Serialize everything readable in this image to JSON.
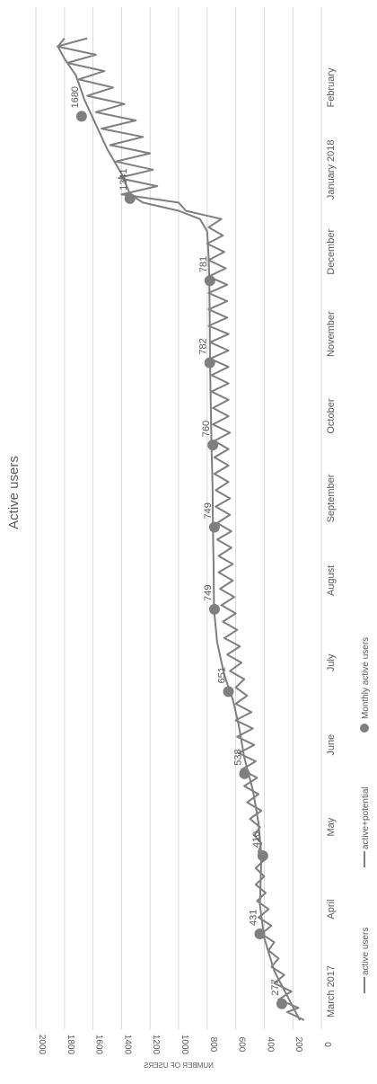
{
  "chart_data": {
    "type": "line",
    "title": "Active users",
    "ylabel": "NUMBER OF USERS",
    "ylim": [
      0,
      2000
    ],
    "y_ticks": [
      0,
      200,
      400,
      600,
      800,
      1000,
      1200,
      1400,
      1600,
      1800,
      2000
    ],
    "grid": true,
    "legend_position": "bottom",
    "x_tick_labels": [
      {
        "label": "March 2017",
        "month": 0
      },
      {
        "label": "April",
        "month": 1
      },
      {
        "label": "May",
        "month": 2
      },
      {
        "label": "June",
        "month": 3
      },
      {
        "label": "July",
        "month": 4
      },
      {
        "label": "August",
        "month": 5
      },
      {
        "label": "September",
        "month": 6
      },
      {
        "label": "October",
        "month": 7
      },
      {
        "label": "November",
        "month": 8
      },
      {
        "label": "December",
        "month": 9
      },
      {
        "label": "January 2018",
        "month": 10
      },
      {
        "label": "February",
        "month": 11
      }
    ],
    "colors": {
      "line": "#7f7f7f",
      "marker": "#7f7f7f",
      "grid": "#d9d9d9",
      "text": "#595959"
    },
    "series": [
      {
        "name": "active users",
        "kind": "line",
        "points": [
          [
            0,
            150
          ],
          [
            0.3,
            240
          ],
          [
            0.6,
            330
          ],
          [
            1.0,
            400
          ],
          [
            1.4,
            430
          ],
          [
            2.0,
            420
          ],
          [
            2.4,
            440
          ],
          [
            2.8,
            480
          ],
          [
            3.2,
            540
          ],
          [
            3.6,
            580
          ],
          [
            3.9,
            620
          ],
          [
            4.2,
            680
          ],
          [
            4.6,
            730
          ],
          [
            5.0,
            752
          ],
          [
            5.5,
            755
          ],
          [
            6.0,
            760
          ],
          [
            6.5,
            762
          ],
          [
            7.0,
            770
          ],
          [
            7.5,
            775
          ],
          [
            8.0,
            780
          ],
          [
            8.5,
            782
          ],
          [
            9.0,
            785
          ],
          [
            9.3,
            790
          ],
          [
            9.6,
            800
          ],
          [
            9.75,
            850
          ],
          [
            9.85,
            1000
          ],
          [
            9.95,
            1250
          ],
          [
            10.05,
            1340
          ],
          [
            10.3,
            1400
          ],
          [
            10.6,
            1500
          ],
          [
            10.9,
            1580
          ],
          [
            11.2,
            1660
          ],
          [
            11.5,
            1720
          ],
          [
            11.7,
            1800
          ],
          [
            11.85,
            1845
          ],
          [
            11.95,
            1800
          ]
        ]
      },
      {
        "name": "active+potential",
        "kind": "line",
        "points": [
          [
            0,
            120
          ],
          [
            0.1,
            240
          ],
          [
            0.15,
            160
          ],
          [
            0.25,
            300
          ],
          [
            0.35,
            210
          ],
          [
            0.45,
            330
          ],
          [
            0.55,
            260
          ],
          [
            0.65,
            350
          ],
          [
            0.75,
            300
          ],
          [
            0.85,
            370
          ],
          [
            0.95,
            330
          ],
          [
            1.05,
            420
          ],
          [
            1.15,
            350
          ],
          [
            1.25,
            440
          ],
          [
            1.35,
            370
          ],
          [
            1.45,
            450
          ],
          [
            1.55,
            390
          ],
          [
            1.65,
            460
          ],
          [
            1.75,
            400
          ],
          [
            1.85,
            460
          ],
          [
            1.95,
            400
          ],
          [
            2.05,
            440
          ],
          [
            2.15,
            420
          ],
          [
            2.25,
            470
          ],
          [
            2.35,
            430
          ],
          [
            2.45,
            500
          ],
          [
            2.55,
            420
          ],
          [
            2.65,
            520
          ],
          [
            2.75,
            440
          ],
          [
            2.85,
            540
          ],
          [
            2.95,
            450
          ],
          [
            3.05,
            560
          ],
          [
            3.15,
            460
          ],
          [
            3.25,
            580
          ],
          [
            3.35,
            470
          ],
          [
            3.45,
            590
          ],
          [
            3.55,
            480
          ],
          [
            3.65,
            600
          ],
          [
            3.75,
            490
          ],
          [
            3.85,
            600
          ],
          [
            3.95,
            520
          ],
          [
            4.05,
            600
          ],
          [
            4.15,
            540
          ],
          [
            4.25,
            640
          ],
          [
            4.35,
            560
          ],
          [
            4.45,
            660
          ],
          [
            4.55,
            570
          ],
          [
            4.65,
            680
          ],
          [
            4.75,
            590
          ],
          [
            4.85,
            690
          ],
          [
            4.95,
            600
          ],
          [
            5.05,
            700
          ],
          [
            5.15,
            610
          ],
          [
            5.25,
            710
          ],
          [
            5.35,
            620
          ],
          [
            5.45,
            720
          ],
          [
            5.55,
            620
          ],
          [
            5.65,
            720
          ],
          [
            5.75,
            630
          ],
          [
            5.85,
            730
          ],
          [
            5.95,
            630
          ],
          [
            6.05,
            730
          ],
          [
            6.15,
            640
          ],
          [
            6.25,
            740
          ],
          [
            6.35,
            640
          ],
          [
            6.45,
            740
          ],
          [
            6.55,
            650
          ],
          [
            6.65,
            750
          ],
          [
            6.75,
            650
          ],
          [
            6.85,
            750
          ],
          [
            6.95,
            650
          ],
          [
            7.05,
            750
          ],
          [
            7.15,
            640
          ],
          [
            7.25,
            760
          ],
          [
            7.35,
            650
          ],
          [
            7.45,
            760
          ],
          [
            7.55,
            650
          ],
          [
            7.65,
            770
          ],
          [
            7.75,
            650
          ],
          [
            7.85,
            770
          ],
          [
            7.95,
            650
          ],
          [
            8.05,
            780
          ],
          [
            8.15,
            650
          ],
          [
            8.25,
            780
          ],
          [
            8.35,
            650
          ],
          [
            8.45,
            790
          ],
          [
            8.55,
            660
          ],
          [
            8.65,
            790
          ],
          [
            8.75,
            660
          ],
          [
            8.85,
            790
          ],
          [
            8.95,
            660
          ],
          [
            9.05,
            790
          ],
          [
            9.15,
            670
          ],
          [
            9.25,
            790
          ],
          [
            9.35,
            680
          ],
          [
            9.45,
            800
          ],
          [
            9.55,
            690
          ],
          [
            9.65,
            790
          ],
          [
            9.75,
            700
          ],
          [
            9.85,
            950
          ],
          [
            9.95,
            1000
          ],
          [
            10.05,
            1400
          ],
          [
            10.15,
            1150
          ],
          [
            10.25,
            1420
          ],
          [
            10.35,
            1180
          ],
          [
            10.45,
            1440
          ],
          [
            10.55,
            1200
          ],
          [
            10.65,
            1480
          ],
          [
            10.75,
            1250
          ],
          [
            10.85,
            1540
          ],
          [
            10.95,
            1300
          ],
          [
            11.05,
            1580
          ],
          [
            11.15,
            1380
          ],
          [
            11.25,
            1640
          ],
          [
            11.35,
            1460
          ],
          [
            11.45,
            1700
          ],
          [
            11.55,
            1520
          ],
          [
            11.65,
            1780
          ],
          [
            11.75,
            1580
          ],
          [
            11.85,
            1850
          ],
          [
            11.95,
            1640
          ]
        ]
      },
      {
        "name": "Monthly active users",
        "kind": "markers",
        "points": [
          {
            "x": 0.2,
            "y": 277,
            "label": "277"
          },
          {
            "x": 1.05,
            "y": 431,
            "label": "431"
          },
          {
            "x": 2.0,
            "y": 410,
            "label": "410"
          },
          {
            "x": 3.0,
            "y": 538,
            "label": "538"
          },
          {
            "x": 4.0,
            "y": 651,
            "label": "651"
          },
          {
            "x": 5.0,
            "y": 749,
            "label": "749"
          },
          {
            "x": 6.0,
            "y": 749,
            "label": "749"
          },
          {
            "x": 7.0,
            "y": 760,
            "label": "760"
          },
          {
            "x": 8.0,
            "y": 782,
            "label": "782"
          },
          {
            "x": 9.0,
            "y": 781,
            "label": "781"
          },
          {
            "x": 10.0,
            "y": 1341,
            "label": "1341"
          },
          {
            "x": 11.0,
            "y": 1680,
            "label": "1680"
          }
        ]
      }
    ]
  }
}
